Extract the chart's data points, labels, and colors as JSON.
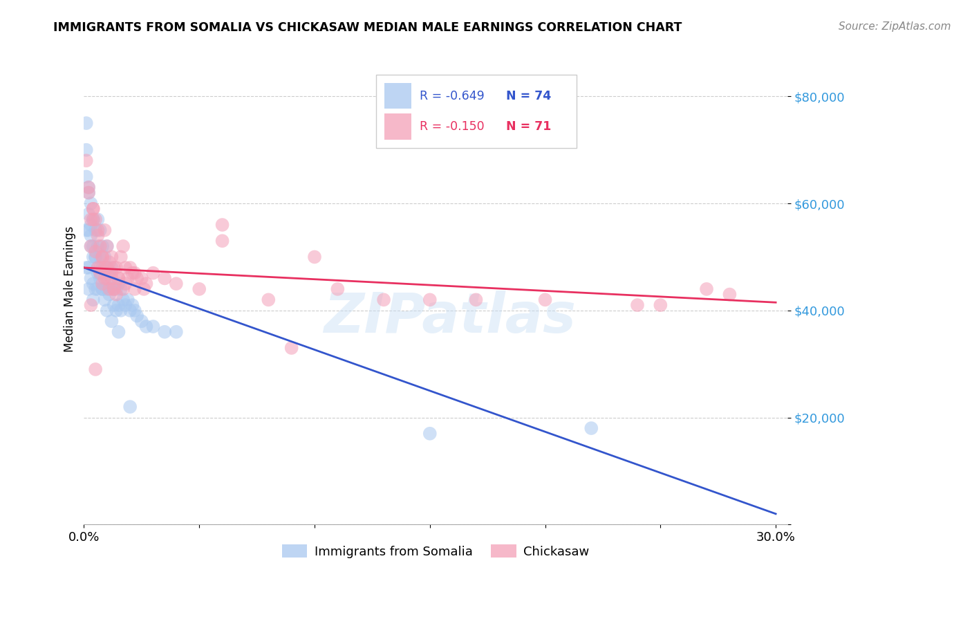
{
  "title": "IMMIGRANTS FROM SOMALIA VS CHICKASAW MEDIAN MALE EARNINGS CORRELATION CHART",
  "source": "Source: ZipAtlas.com",
  "ylabel": "Median Male Earnings",
  "y_ticks": [
    0,
    20000,
    40000,
    60000,
    80000
  ],
  "y_tick_labels": [
    "",
    "$20,000",
    "$40,000",
    "$60,000",
    "$80,000"
  ],
  "xlim": [
    0.0,
    0.305
  ],
  "ylim": [
    0,
    88000
  ],
  "legend_r1": "-0.649",
  "legend_n1": "74",
  "legend_r2": "-0.150",
  "legend_n2": "71",
  "color_somalia": "#a8c8f0",
  "color_chickasaw": "#f4a0b8",
  "color_somalia_line": "#3355cc",
  "color_chickasaw_line": "#e83060",
  "watermark": "ZIPatlas",
  "somalia_line_x0": 0.0,
  "somalia_line_y0": 48000,
  "somalia_line_x1": 0.3,
  "somalia_line_y1": 2000,
  "chickasaw_line_x0": 0.0,
  "chickasaw_line_y0": 48000,
  "chickasaw_line_x1": 0.3,
  "chickasaw_line_y1": 41500,
  "somalia_points_x": [
    0.001,
    0.001,
    0.001,
    0.002,
    0.002,
    0.002,
    0.002,
    0.003,
    0.003,
    0.003,
    0.004,
    0.004,
    0.004,
    0.004,
    0.005,
    0.005,
    0.005,
    0.006,
    0.006,
    0.006,
    0.006,
    0.007,
    0.007,
    0.007,
    0.008,
    0.008,
    0.008,
    0.009,
    0.009,
    0.01,
    0.01,
    0.01,
    0.011,
    0.011,
    0.012,
    0.012,
    0.013,
    0.013,
    0.014,
    0.014,
    0.015,
    0.015,
    0.016,
    0.016,
    0.017,
    0.018,
    0.019,
    0.02,
    0.021,
    0.022,
    0.023,
    0.025,
    0.027,
    0.03,
    0.035,
    0.04,
    0.001,
    0.002,
    0.003,
    0.004,
    0.005,
    0.006,
    0.007,
    0.008,
    0.009,
    0.01,
    0.012,
    0.015,
    0.02,
    0.15,
    0.22,
    0.001,
    0.002,
    0.003
  ],
  "somalia_points_y": [
    75000,
    55000,
    48000,
    63000,
    55000,
    48000,
    44000,
    60000,
    52000,
    46000,
    57000,
    50000,
    45000,
    42000,
    55000,
    50000,
    44000,
    57000,
    52000,
    47000,
    44000,
    55000,
    50000,
    46000,
    52000,
    48000,
    44000,
    50000,
    46000,
    52000,
    48000,
    44000,
    47000,
    43000,
    48000,
    44000,
    45000,
    41000,
    44000,
    40000,
    45000,
    41000,
    44000,
    40000,
    42000,
    41000,
    42000,
    40000,
    41000,
    40000,
    39000,
    38000,
    37000,
    37000,
    36000,
    36000,
    65000,
    58000,
    56000,
    52000,
    50000,
    48000,
    47000,
    44000,
    42000,
    40000,
    38000,
    36000,
    22000,
    17000,
    18000,
    70000,
    62000,
    54000
  ],
  "chickasaw_points_x": [
    0.001,
    0.002,
    0.003,
    0.003,
    0.004,
    0.005,
    0.005,
    0.006,
    0.006,
    0.007,
    0.007,
    0.008,
    0.008,
    0.009,
    0.009,
    0.01,
    0.01,
    0.011,
    0.011,
    0.012,
    0.012,
    0.013,
    0.013,
    0.014,
    0.014,
    0.015,
    0.016,
    0.017,
    0.018,
    0.019,
    0.02,
    0.021,
    0.022,
    0.023,
    0.025,
    0.027,
    0.03,
    0.035,
    0.04,
    0.05,
    0.06,
    0.08,
    0.1,
    0.13,
    0.17,
    0.2,
    0.24,
    0.27,
    0.002,
    0.004,
    0.006,
    0.008,
    0.01,
    0.012,
    0.015,
    0.018,
    0.022,
    0.026,
    0.004,
    0.007,
    0.009,
    0.013,
    0.017,
    0.06,
    0.09,
    0.11,
    0.15,
    0.25,
    0.28,
    0.003,
    0.005
  ],
  "chickasaw_points_y": [
    68000,
    62000,
    57000,
    52000,
    59000,
    57000,
    51000,
    54000,
    48000,
    52000,
    47000,
    50000,
    45000,
    55000,
    48000,
    52000,
    46000,
    49000,
    44000,
    50000,
    46000,
    48000,
    44000,
    48000,
    43000,
    46000,
    50000,
    52000,
    48000,
    46000,
    48000,
    47000,
    47000,
    46000,
    46000,
    45000,
    47000,
    46000,
    45000,
    44000,
    53000,
    42000,
    50000,
    42000,
    42000,
    42000,
    41000,
    44000,
    63000,
    57000,
    55000,
    50000,
    48000,
    47000,
    46000,
    45000,
    44000,
    44000,
    59000,
    48000,
    46000,
    44000,
    44000,
    56000,
    33000,
    44000,
    42000,
    41000,
    43000,
    41000,
    29000
  ]
}
